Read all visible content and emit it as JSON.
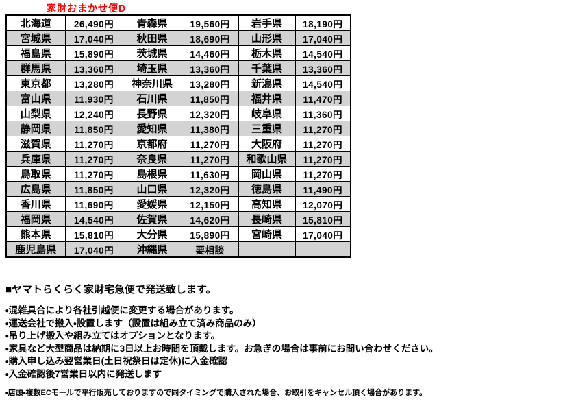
{
  "title": "家財おまかせ便D",
  "colors": {
    "title_red": "#ff0000",
    "row_shade_gray": "#d3d3d3",
    "table_border": "#000000",
    "text": "#000000"
  },
  "shipping_table": {
    "columns_per_row": [
      "prefecture",
      "price",
      "prefecture",
      "price",
      "prefecture",
      "price"
    ],
    "rows": [
      [
        "北海道",
        "26,490円",
        "青森県",
        "19,560円",
        "岩手県",
        "18,190円"
      ],
      [
        "宮城県",
        "17,040円",
        "秋田県",
        "18,690円",
        "山形県",
        "17,040円"
      ],
      [
        "福島県",
        "15,890円",
        "茨城県",
        "14,460円",
        "栃木県",
        "14,540円"
      ],
      [
        "群馬県",
        "13,360円",
        "埼玉県",
        "13,360円",
        "千葉県",
        "13,360円"
      ],
      [
        "東京都",
        "13,280円",
        "神奈川県",
        "13,280円",
        "新潟県",
        "14,540円"
      ],
      [
        "富山県",
        "11,930円",
        "石川県",
        "11,850円",
        "福井県",
        "11,470円"
      ],
      [
        "山梨県",
        "12,240円",
        "長野県",
        "12,320円",
        "岐阜県",
        "11,360円"
      ],
      [
        "静岡県",
        "11,850円",
        "愛知県",
        "11,380円",
        "三重県",
        "11,270円"
      ],
      [
        "滋賀県",
        "11,270円",
        "京都府",
        "11,270円",
        "大阪府",
        "11,270円"
      ],
      [
        "兵庫県",
        "11,270円",
        "奈良県",
        "11,270円",
        "和歌山県",
        "11,270円"
      ],
      [
        "鳥取県",
        "11,270円",
        "島根県",
        "11,630円",
        "岡山県",
        "11,270円"
      ],
      [
        "広島県",
        "11,850円",
        "山口県",
        "12,320円",
        "徳島県",
        "11,490円"
      ],
      [
        "香川県",
        "11,690円",
        "愛媛県",
        "12,150円",
        "高知県",
        "12,070円"
      ],
      [
        "福岡県",
        "14,540円",
        "佐賀県",
        "14,620円",
        "長崎県",
        "15,810円"
      ],
      [
        "熊本県",
        "15,810円",
        "大分県",
        "15,890円",
        "宮崎県",
        "17,040円"
      ],
      [
        "鹿児島県",
        "17,040円",
        "沖縄県",
        "要相談",
        "",
        ""
      ]
    ]
  },
  "notes": {
    "heading": "■ヤマトらくらく家財宅急便で発送致します。",
    "bullets": [
      "・混雑具合により各社引越便に変更する場合があります。",
      "・運送会社で搬入・設置します（設置は組み立て済み商品のみ）",
      "・吊り上げ搬入や組み立てはオプションとなります。",
      "・家具など大型商品は納期に3日以上お時間を頂戴します。お急ぎの場合は事前にお問い合わせください。",
      "・購入申し込み翌営業日(土日祝祭日は定休)に入金確認",
      "・入金確認後7営業日以内に発送します"
    ],
    "fine_print": "・店頭・複数ECモールで平行販売しておりますので同タイミングで購入された場合、お取引をキャンセル頂く場合があります。"
  }
}
